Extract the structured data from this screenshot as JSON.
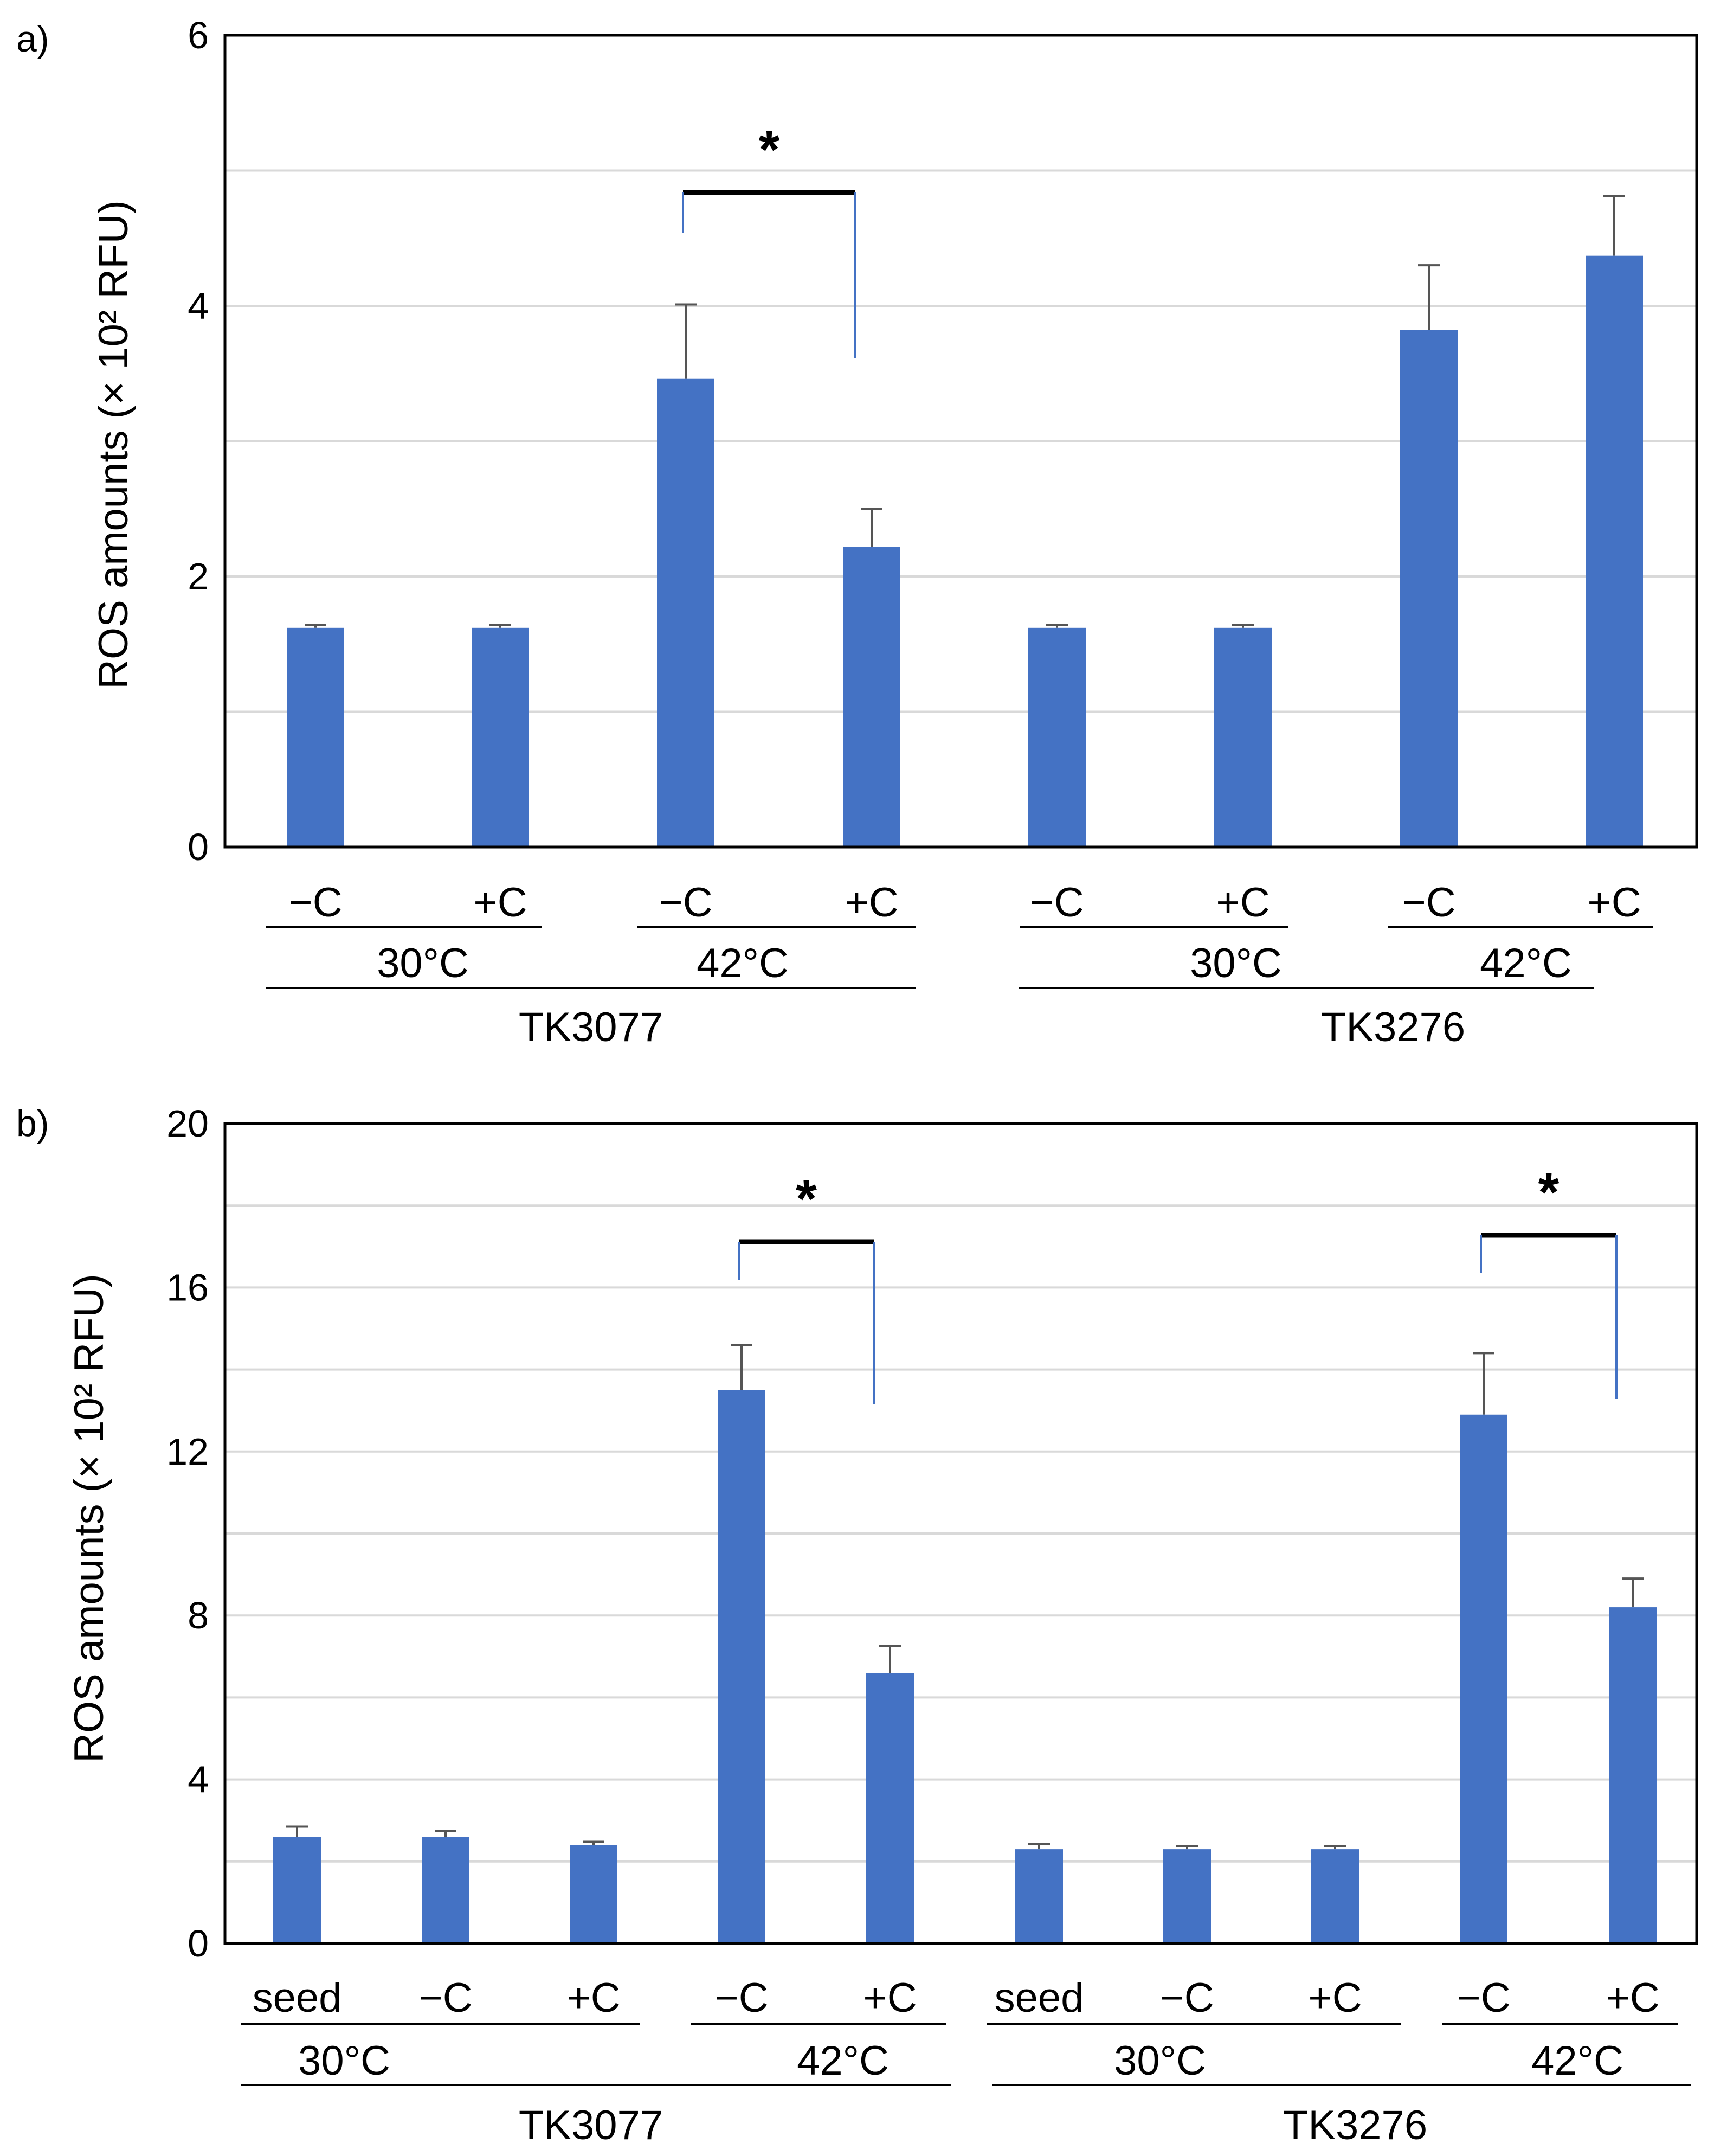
{
  "chart_data": [
    {
      "panel_label": "a)",
      "type": "bar",
      "ylabel": "ROS amounts (× 10² RFU)",
      "ylim": [
        0,
        6
      ],
      "yticks": [
        "0",
        "2",
        "4",
        "6"
      ],
      "grid_step": 1,
      "color": "#4472C4",
      "series": [
        {
          "values": [
            1.62,
            1.62,
            3.46,
            2.22,
            1.62,
            1.62,
            3.82,
            4.37
          ],
          "errors": [
            0.02,
            0.02,
            0.55,
            0.28,
            0.02,
            0.02,
            0.48,
            0.44
          ]
        }
      ],
      "conditions": [
        "−C",
        "+C",
        "−C",
        "+C",
        "−C",
        "+C",
        "−C",
        "+C"
      ],
      "temperatures": [
        "30°C",
        "42°C",
        "30°C",
        "42°C"
      ],
      "strains": [
        "TK3077",
        "TK3276"
      ],
      "significance": [
        {
          "from": 2,
          "to": 3,
          "label": "*"
        }
      ]
    },
    {
      "panel_label": "b)",
      "type": "bar",
      "ylabel": "ROS amounts (× 10² RFU)",
      "ylim": [
        0,
        20
      ],
      "yticks": [
        "0",
        "4",
        "8",
        "12",
        "16",
        "20"
      ],
      "grid_step": 2,
      "color": "#4472C4",
      "series": [
        {
          "values": [
            2.6,
            2.6,
            2.4,
            13.5,
            6.6,
            2.3,
            2.3,
            2.3,
            12.9,
            8.2
          ],
          "errors": [
            0.25,
            0.15,
            0.08,
            1.1,
            0.65,
            0.12,
            0.08,
            0.08,
            1.5,
            0.7
          ]
        }
      ],
      "conditions": [
        "seed",
        "−C",
        "+C",
        "−C",
        "+C",
        "seed",
        "−C",
        "+C",
        "−C",
        "+C"
      ],
      "temperatures": [
        "30°C",
        "42°C",
        "30°C",
        "42°C"
      ],
      "strains": [
        "TK3077",
        "TK3276"
      ],
      "significance": [
        {
          "from": 3,
          "to": 4,
          "label": "*"
        },
        {
          "from": 8,
          "to": 9,
          "label": "*"
        }
      ]
    }
  ]
}
